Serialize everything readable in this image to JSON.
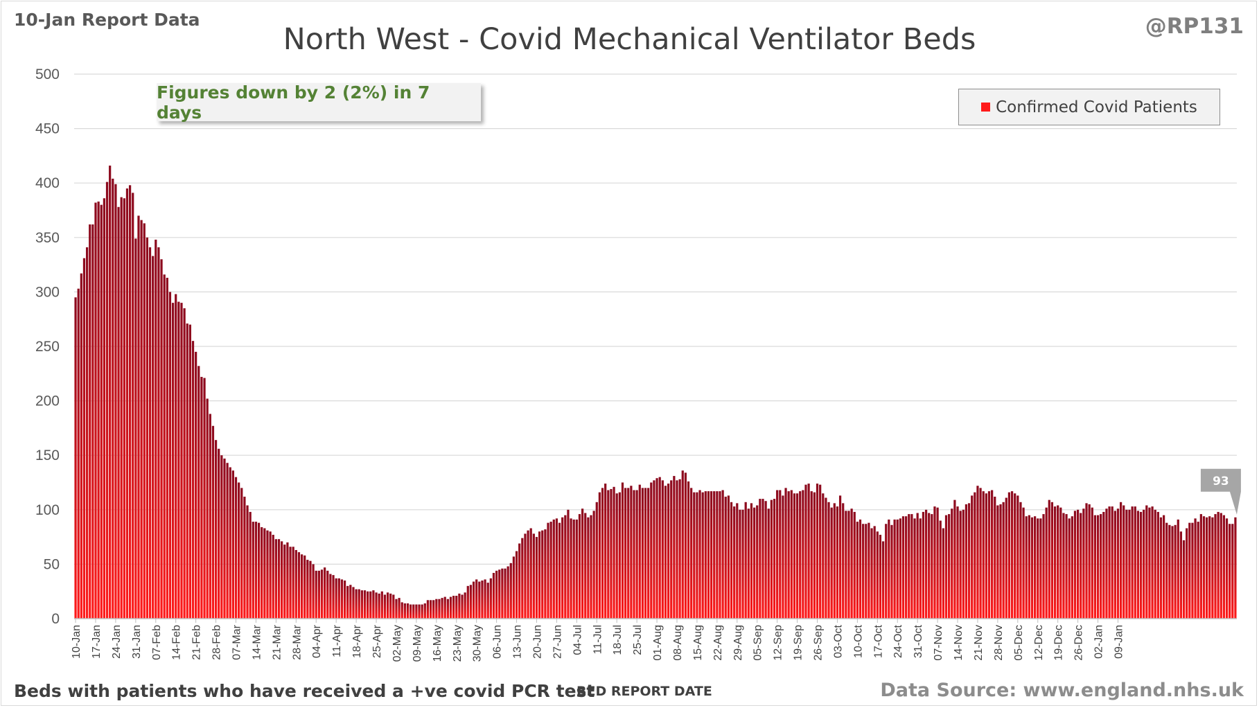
{
  "header": {
    "report_label": "10-Jan Report Data",
    "author": "@RP131"
  },
  "footer": {
    "subtitle": "Beds with patients who have received a +ve covid PCR test",
    "source": "Data Source: www.england.nhs.uk"
  },
  "annotation": "Figures down by 2 (2%) in 7 days",
  "colors": {
    "bar_top": "#8b0a1e",
    "bar_bottom": "#ff1a1a",
    "annotation_text": "#548235",
    "callout": "#a6a6a6",
    "grid": "#d9d9d9"
  },
  "chart_data": {
    "type": "bar",
    "title": "North West - Covid Mechanical Ventilator Beds",
    "xlabel": "BED REPORT DATE",
    "ylabel": "",
    "ylim": [
      0,
      500
    ],
    "yticks": [
      0,
      50,
      100,
      150,
      200,
      250,
      300,
      350,
      400,
      450,
      500
    ],
    "grid": true,
    "legend_position": "top-right",
    "x_start": "10-Jan",
    "x_end": "09-Jan",
    "x_tick_labels": [
      "10-Jan",
      "17-Jan",
      "24-Jan",
      "31-Jan",
      "07-Feb",
      "14-Feb",
      "21-Feb",
      "28-Feb",
      "07-Mar",
      "14-Mar",
      "21-Mar",
      "28-Mar",
      "04-Apr",
      "11-Apr",
      "18-Apr",
      "25-Apr",
      "02-May",
      "09-May",
      "16-May",
      "23-May",
      "30-May",
      "06-Jun",
      "13-Jun",
      "20-Jun",
      "27-Jun",
      "04-Jul",
      "11-Jul",
      "18-Jul",
      "25-Jul",
      "01-Aug",
      "08-Aug",
      "15-Aug",
      "22-Aug",
      "29-Aug",
      "05-Sep",
      "12-Sep",
      "19-Sep",
      "26-Sep",
      "03-Oct",
      "10-Oct",
      "17-Oct",
      "24-Oct",
      "31-Oct",
      "07-Nov",
      "14-Nov",
      "21-Nov",
      "28-Nov",
      "05-Dec",
      "12-Dec",
      "19-Dec",
      "26-Dec",
      "02-Jan",
      "09-Jan"
    ],
    "callout": {
      "label": "93",
      "value": 93
    },
    "series": [
      {
        "name": "Confirmed Covid Patients",
        "values": [
          295,
          303,
          317,
          331,
          341,
          362,
          362,
          382,
          383,
          380,
          386,
          401,
          416,
          404,
          399,
          378,
          387,
          386,
          395,
          398,
          391,
          349,
          370,
          366,
          363,
          350,
          341,
          333,
          348,
          341,
          330,
          316,
          313,
          300,
          290,
          298,
          291,
          290,
          285,
          271,
          270,
          255,
          245,
          232,
          222,
          221,
          202,
          188,
          177,
          164,
          156,
          150,
          147,
          143,
          139,
          136,
          130,
          125,
          120,
          112,
          104,
          98,
          89,
          89,
          88,
          84,
          83,
          81,
          80,
          77,
          73,
          73,
          71,
          68,
          70,
          66,
          66,
          63,
          61,
          59,
          58,
          54,
          53,
          50,
          44,
          44,
          45,
          47,
          44,
          41,
          40,
          37,
          37,
          36,
          35,
          30,
          31,
          29,
          27,
          27,
          26,
          26,
          25,
          25,
          26,
          24,
          23,
          25,
          22,
          24,
          23,
          22,
          18,
          19,
          15,
          14,
          14,
          13,
          13,
          13,
          13,
          13,
          14,
          17,
          17,
          17,
          18,
          18,
          19,
          20,
          18,
          20,
          21,
          21,
          23,
          22,
          24,
          30,
          31,
          34,
          36,
          34,
          35,
          36,
          33,
          37,
          42,
          44,
          45,
          46,
          46,
          48,
          51,
          57,
          62,
          69,
          74,
          78,
          81,
          83,
          78,
          75,
          80,
          81,
          82,
          88,
          89,
          91,
          92,
          88,
          93,
          95,
          100,
          92,
          91,
          91,
          96,
          101,
          97,
          93,
          95,
          99,
          107,
          116,
          120,
          124,
          118,
          119,
          121,
          115,
          116,
          125,
          120,
          120,
          122,
          118,
          118,
          123,
          120,
          120,
          120,
          125,
          127,
          129,
          130,
          127,
          122,
          124,
          127,
          131,
          127,
          128,
          136,
          134,
          126,
          120,
          116,
          116,
          118,
          116,
          117,
          117,
          117,
          117,
          117,
          117,
          118,
          112,
          113,
          107,
          103,
          106,
          100,
          100,
          107,
          101,
          106,
          102,
          104,
          110,
          110,
          108,
          101,
          109,
          110,
          118,
          118,
          113,
          120,
          117,
          118,
          115,
          115,
          117,
          118,
          123,
          124,
          117,
          116,
          124,
          123,
          115,
          111,
          107,
          102,
          106,
          103,
          113,
          106,
          99,
          99,
          101,
          98,
          89,
          91,
          87,
          87,
          88,
          83,
          85,
          80,
          77,
          71,
          87,
          91,
          86,
          91,
          91,
          92,
          94,
          94,
          96,
          96,
          92,
          97,
          92,
          98,
          100,
          97,
          96,
          103,
          102,
          90,
          83,
          95,
          96,
          101,
          109,
          103,
          99,
          100,
          105,
          106,
          113,
          116,
          122,
          120,
          117,
          115,
          117,
          118,
          112,
          104,
          105,
          107,
          111,
          116,
          117,
          115,
          113,
          107,
          102,
          94,
          95,
          93,
          94,
          92,
          92,
          96,
          102,
          109,
          107,
          103,
          104,
          102,
          97,
          96,
          92,
          94,
          99,
          100,
          97,
          101,
          106,
          105,
          102,
          95,
          95,
          96,
          98,
          101,
          103,
          103,
          99,
          101,
          107,
          104,
          100,
          100,
          103,
          103,
          99,
          98,
          100,
          104,
          102,
          103,
          100,
          98,
          93,
          95,
          88,
          86,
          85,
          86,
          91,
          80,
          72,
          83,
          88,
          88,
          92,
          89,
          96,
          94,
          93,
          94,
          93,
          96,
          98,
          97,
          95,
          92,
          87,
          87,
          93
        ]
      }
    ]
  }
}
